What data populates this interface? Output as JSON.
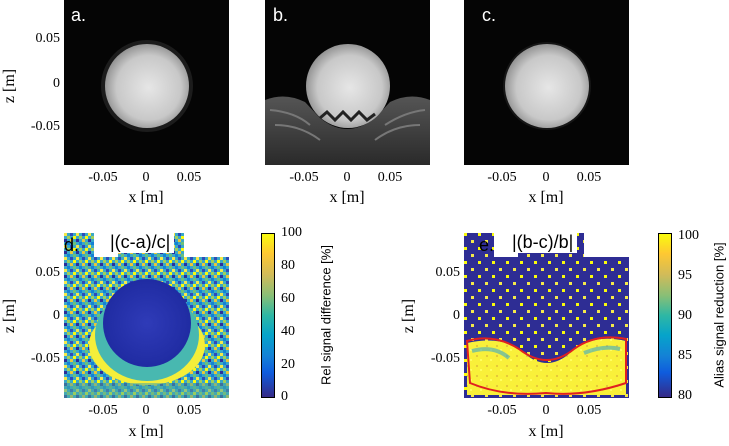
{
  "panels": {
    "a": {
      "label": "a."
    },
    "b": {
      "label": "b."
    },
    "c": {
      "label": "c."
    },
    "d": {
      "label": "d.",
      "formula": "|(c-a)/c|"
    },
    "e": {
      "label": "e.",
      "formula": "|(b-c)/b|"
    }
  },
  "axes": {
    "xlabel": "x [m]",
    "zlabel": "z [m]",
    "x_ticks": [
      "-0.05",
      "0",
      "0.05"
    ],
    "z_ticks": [
      "0.05",
      "0",
      "-0.05"
    ]
  },
  "colorbar_d": {
    "label": "Rel signal difference [%]",
    "ticks": [
      "100",
      "80",
      "60",
      "40",
      "20",
      "0"
    ]
  },
  "colorbar_e": {
    "label": "Alias signal reduction [%]",
    "ticks": [
      "100",
      "95",
      "90",
      "85",
      "80"
    ]
  }
}
